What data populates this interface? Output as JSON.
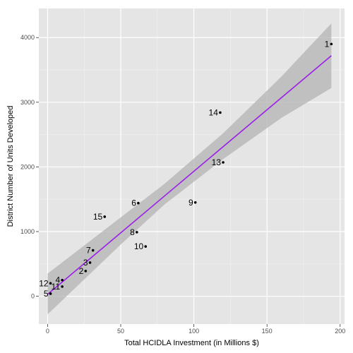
{
  "chart_data": {
    "type": "scatter",
    "title": "",
    "xlabel": "Total HCIDLA Investment (in Millions $)",
    "ylabel": "District Number of Units Developed",
    "xlim": [
      -6,
      203
    ],
    "ylim": [
      -430,
      4450
    ],
    "x_ticks": [
      0,
      50,
      100,
      150,
      200
    ],
    "x_tick_labels": [
      "0",
      "50",
      "100",
      "150",
      "200"
    ],
    "y_ticks": [
      0,
      1000,
      2000,
      3000,
      4000
    ],
    "y_tick_labels": [
      "0",
      "1000",
      "2000",
      "3000",
      "4000"
    ],
    "grid": true,
    "legend": "none",
    "colors": {
      "panel": "#e5e5e5",
      "grid_major": "#ffffff",
      "grid_minor": "#f2f2f2",
      "point": "#000000",
      "fit_line": "#9b1fe8",
      "ribbon": "#b3b3b3"
    },
    "points": [
      {
        "label": "1",
        "x": 194,
        "y": 3900
      },
      {
        "label": "2",
        "x": 26,
        "y": 390
      },
      {
        "label": "3",
        "x": 29,
        "y": 520
      },
      {
        "label": "4",
        "x": 10,
        "y": 250
      },
      {
        "label": "5",
        "x": 2,
        "y": 40
      },
      {
        "label": "6",
        "x": 62,
        "y": 1440
      },
      {
        "label": "7",
        "x": 31,
        "y": 710
      },
      {
        "label": "8",
        "x": 61,
        "y": 990
      },
      {
        "label": "9",
        "x": 101,
        "y": 1450
      },
      {
        "label": "10",
        "x": 67,
        "y": 770
      },
      {
        "label": "11",
        "x": 10,
        "y": 150
      },
      {
        "label": "12",
        "x": 2,
        "y": 200
      },
      {
        "label": "13",
        "x": 120,
        "y": 2070
      },
      {
        "label": "14",
        "x": 118,
        "y": 2840
      },
      {
        "label": "15",
        "x": 39,
        "y": 1230
      }
    ],
    "fit": {
      "method": "lm",
      "line": [
        [
          0,
          30
        ],
        [
          194,
          3720
        ]
      ],
      "ribbon": [
        {
          "x": 0,
          "lower": -280,
          "upper": 350
        },
        {
          "x": 50,
          "lower": 800,
          "upper": 1220
        },
        {
          "x": 80,
          "lower": 1420,
          "upper": 1740
        },
        {
          "x": 120,
          "lower": 2120,
          "upper": 2520
        },
        {
          "x": 160,
          "lower": 2760,
          "upper": 3400
        },
        {
          "x": 194,
          "lower": 3220,
          "upper": 4220
        }
      ]
    }
  }
}
